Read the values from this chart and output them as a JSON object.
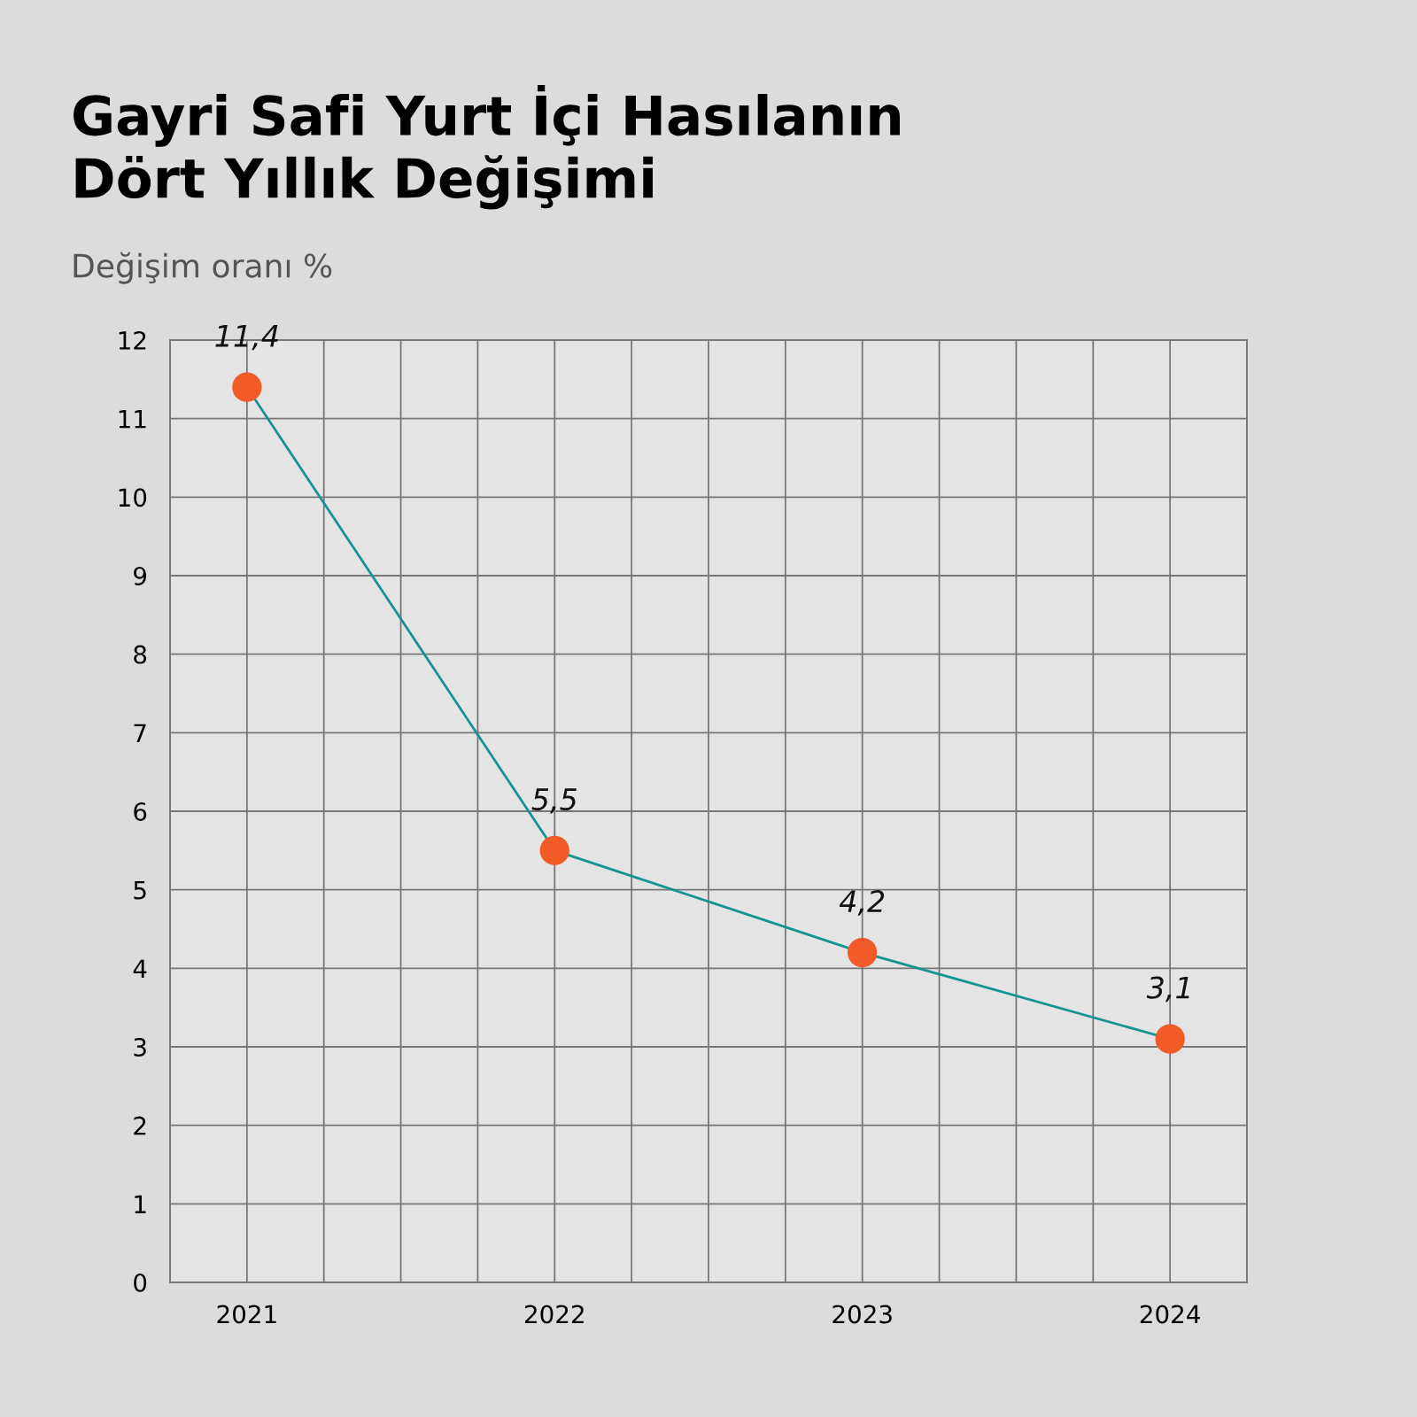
{
  "chart_data": {
    "type": "line",
    "title": "Gayri Safi Yurt İçi Hasılanın\nDört Yıllık Değişimi",
    "subtitle": "Değişim oranı %",
    "categories": [
      "2021",
      "2022",
      "2023",
      "2024"
    ],
    "series": [
      {
        "color": "#149490",
        "colors": [
          "#f25a27",
          "#f25a27",
          "#f25a27",
          "#f25a27"
        ],
        "values": [
          11.4,
          5.5,
          4.2,
          3.1
        ],
        "value_labels": [
          "11,4",
          "5,5",
          "4,2",
          "3,1"
        ]
      }
    ],
    "ylim": [
      0,
      12
    ],
    "yticks": [
      0,
      1,
      2,
      3,
      4,
      5,
      6,
      7,
      8,
      9,
      10,
      11,
      12
    ],
    "grid": true,
    "marker": "circle",
    "line_style": "solid"
  }
}
